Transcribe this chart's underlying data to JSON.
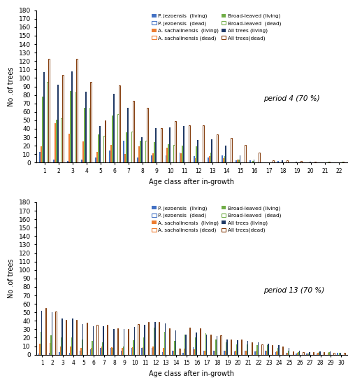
{
  "period4": {
    "title": "period 4 (70 %)",
    "age_classes": [
      1,
      2,
      3,
      4,
      5,
      6,
      7,
      8,
      9,
      10,
      11,
      12,
      13,
      14,
      15,
      16,
      17,
      18,
      19,
      20,
      21,
      22
    ],
    "pj_living": [
      13,
      4,
      2,
      4,
      6,
      14,
      26,
      6,
      9,
      9,
      12,
      8,
      6,
      9,
      3,
      3,
      0,
      2,
      0,
      0,
      0,
      0
    ],
    "as_living": [
      19,
      47,
      34,
      25,
      13,
      21,
      10,
      19,
      11,
      18,
      11,
      5,
      8,
      5,
      4,
      0,
      0,
      0,
      0,
      0,
      0,
      0
    ],
    "bl_living": [
      78,
      51,
      85,
      65,
      33,
      56,
      36,
      26,
      24,
      22,
      20,
      19,
      12,
      8,
      4,
      2,
      0,
      0,
      0,
      0,
      0,
      0
    ],
    "all_living": [
      107,
      92,
      108,
      84,
      43,
      81,
      65,
      30,
      41,
      42,
      43,
      27,
      28,
      20,
      9,
      4,
      0,
      3,
      1,
      1,
      0,
      0
    ],
    "pj_dead": [
      0,
      0,
      0,
      0,
      0,
      0,
      0,
      0,
      0,
      0,
      0,
      0,
      0,
      0,
      0,
      0,
      0,
      0,
      0,
      0,
      0,
      0
    ],
    "as_dead": [
      0,
      0,
      0,
      0,
      0,
      0,
      0,
      0,
      0,
      0,
      0,
      0,
      0,
      0,
      0,
      0,
      0,
      0,
      0,
      0,
      0,
      0
    ],
    "bl_dead": [
      95,
      52,
      84,
      65,
      32,
      57,
      37,
      26,
      0,
      21,
      0,
      0,
      0,
      0,
      0,
      0,
      0,
      0,
      0,
      0,
      1,
      1
    ],
    "all_dead": [
      123,
      104,
      123,
      95,
      50,
      91,
      73,
      65,
      41,
      49,
      44,
      44,
      33,
      29,
      21,
      12,
      3,
      3,
      2,
      1,
      1,
      1
    ]
  },
  "period13": {
    "title": "period 13 (70 %)",
    "age_classes": [
      1,
      2,
      3,
      4,
      5,
      6,
      7,
      8,
      9,
      10,
      11,
      12,
      13,
      14,
      15,
      16,
      17,
      18,
      19,
      20,
      21,
      22,
      23,
      24,
      25,
      26,
      27,
      28,
      29,
      30
    ],
    "pj_living": [
      1,
      2,
      3,
      2,
      5,
      6,
      8,
      8,
      5,
      8,
      8,
      8,
      3,
      5,
      2,
      9,
      5,
      5,
      5,
      4,
      5,
      4,
      5,
      3,
      2,
      1,
      1,
      1,
      0,
      2
    ],
    "as_living": [
      13,
      14,
      10,
      10,
      8,
      8,
      10,
      9,
      8,
      9,
      9,
      10,
      8,
      5,
      7,
      6,
      5,
      5,
      5,
      5,
      5,
      5,
      5,
      4,
      2,
      2,
      1,
      2,
      2,
      0
    ],
    "bl_living": [
      27,
      23,
      20,
      20,
      18,
      16,
      15,
      8,
      10,
      17,
      20,
      32,
      27,
      16,
      24,
      20,
      25,
      18,
      15,
      12,
      12,
      11,
      11,
      8,
      5,
      3,
      1,
      3,
      3,
      2
    ],
    "all_living": [
      52,
      50,
      43,
      43,
      36,
      34,
      34,
      30,
      30,
      33,
      35,
      39,
      37,
      29,
      24,
      26,
      24,
      22,
      18,
      17,
      16,
      15,
      13,
      11,
      8,
      5,
      3,
      4,
      4,
      2
    ],
    "pj_dead": [
      0,
      0,
      0,
      0,
      0,
      0,
      0,
      0,
      0,
      0,
      0,
      0,
      0,
      0,
      0,
      0,
      0,
      0,
      0,
      0,
      0,
      0,
      0,
      0,
      0,
      0,
      0,
      0,
      0,
      0
    ],
    "as_dead": [
      0,
      0,
      0,
      0,
      0,
      0,
      0,
      0,
      0,
      0,
      0,
      0,
      0,
      0,
      0,
      0,
      0,
      0,
      0,
      0,
      0,
      0,
      0,
      0,
      0,
      0,
      0,
      0,
      0,
      0
    ],
    "bl_dead": [
      0,
      0,
      0,
      0,
      0,
      0,
      0,
      0,
      0,
      0,
      0,
      0,
      0,
      0,
      0,
      0,
      0,
      0,
      0,
      0,
      0,
      0,
      0,
      0,
      0,
      0,
      0,
      0,
      0,
      0
    ],
    "all_dead": [
      55,
      51,
      41,
      41,
      38,
      35,
      35,
      31,
      30,
      36,
      39,
      39,
      31,
      7,
      32,
      31,
      24,
      23,
      18,
      18,
      15,
      12,
      11,
      10,
      4,
      3,
      3,
      3,
      2,
      2
    ]
  },
  "colors": {
    "pj_living": "#4472C4",
    "as_living": "#ED7D31",
    "bl_living": "#70AD47",
    "all_living": "#1F3864",
    "pj_dead": "#4472C4",
    "as_dead": "#ED7D31",
    "bl_dead": "#70AD47",
    "all_dead": "#843C0C"
  },
  "legend_labels": {
    "pj_living": "P. jezoensis  (living)",
    "as_living": "A. sachalinensis  (living)",
    "bl_living": "Broad-leaved (living)",
    "all_living": "All trees (living)",
    "pj_dead": "P. jezoensis  (dead)",
    "as_dead": "A. sachalinensis (dead)",
    "bl_dead": "Broad-leaved  (dead)",
    "all_dead": "All trees(dead)"
  },
  "ylabel": "No .of trees",
  "xlabel": "Age class after in-growth",
  "ylim": [
    0,
    180
  ],
  "yticks": [
    0,
    10,
    20,
    30,
    40,
    50,
    60,
    70,
    80,
    90,
    100,
    110,
    120,
    130,
    140,
    150,
    160,
    170,
    180
  ]
}
